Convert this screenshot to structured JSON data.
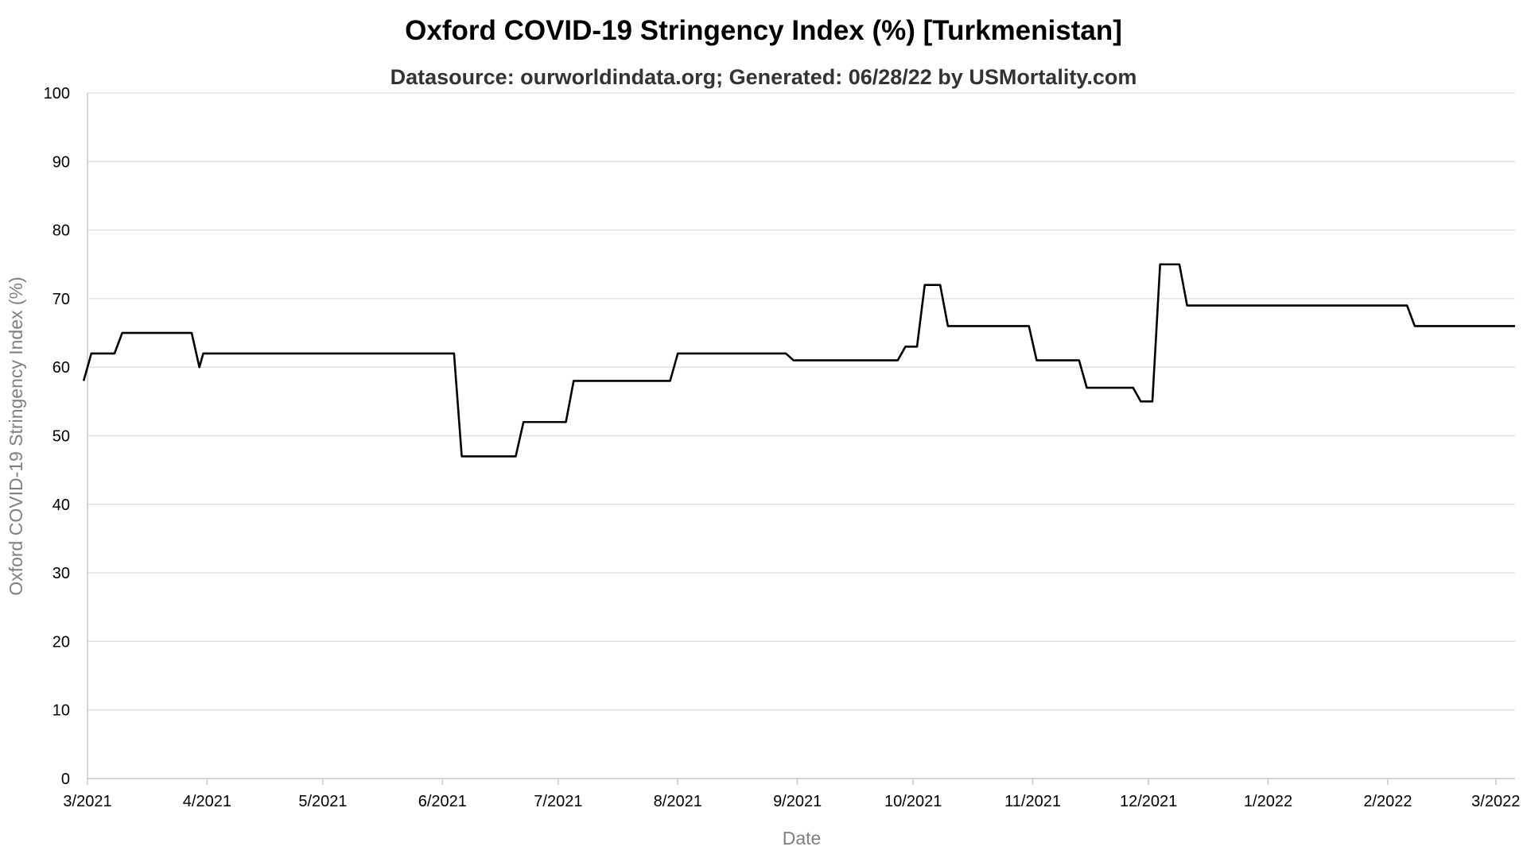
{
  "chart_data": {
    "type": "line",
    "title": "Oxford COVID-19 Stringency Index (%) [Turkmenistan]",
    "subtitle": "Datasource: ourworldindata.org; Generated: 06/28/22 by USMortality.com",
    "xlabel": "Date",
    "ylabel": "Oxford COVID-19 Stringency Index (%)",
    "x_range": [
      "2021-03-01",
      "2022-03-06"
    ],
    "ylim": [
      0,
      100
    ],
    "y_ticks": [
      0,
      10,
      20,
      30,
      40,
      50,
      60,
      70,
      80,
      90,
      100
    ],
    "x_ticks": [
      {
        "date": "2021-03-01",
        "label": "3/2021"
      },
      {
        "date": "2021-04-01",
        "label": "4/2021"
      },
      {
        "date": "2021-05-01",
        "label": "5/2021"
      },
      {
        "date": "2021-06-01",
        "label": "6/2021"
      },
      {
        "date": "2021-07-01",
        "label": "7/2021"
      },
      {
        "date": "2021-08-01",
        "label": "8/2021"
      },
      {
        "date": "2021-09-01",
        "label": "9/2021"
      },
      {
        "date": "2021-10-01",
        "label": "10/2021"
      },
      {
        "date": "2021-11-01",
        "label": "11/2021"
      },
      {
        "date": "2021-12-01",
        "label": "12/2021"
      },
      {
        "date": "2022-01-01",
        "label": "1/2022"
      },
      {
        "date": "2022-02-01",
        "label": "2/2022"
      },
      {
        "date": "2022-03-01",
        "label": "3/2022"
      }
    ],
    "grid": true,
    "line_color": "#000000",
    "series": [
      {
        "x": [
          "2021-02-28",
          "2021-03-02",
          "2021-03-08",
          "2021-03-10",
          "2021-03-28",
          "2021-03-30",
          "2021-03-31",
          "2021-06-04",
          "2021-06-06",
          "2021-06-20",
          "2021-06-22",
          "2021-07-03",
          "2021-07-05",
          "2021-07-30",
          "2021-08-01",
          "2021-08-29",
          "2021-08-31",
          "2021-09-27",
          "2021-09-29",
          "2021-10-02",
          "2021-10-04",
          "2021-10-08",
          "2021-10-10",
          "2021-10-31",
          "2021-11-02",
          "2021-11-13",
          "2021-11-15",
          "2021-11-27",
          "2021-11-29",
          "2021-12-02",
          "2021-12-04",
          "2021-12-09",
          "2021-12-11",
          "2022-02-06",
          "2022-02-08",
          "2022-03-06"
        ],
        "y": [
          58,
          62,
          62,
          65,
          65,
          60,
          62,
          62,
          47,
          47,
          52,
          52,
          58,
          58,
          62,
          62,
          61,
          61,
          63,
          63,
          72,
          72,
          66,
          66,
          61,
          61,
          57,
          57,
          55,
          55,
          75,
          75,
          69,
          69,
          66,
          66
        ]
      }
    ]
  }
}
